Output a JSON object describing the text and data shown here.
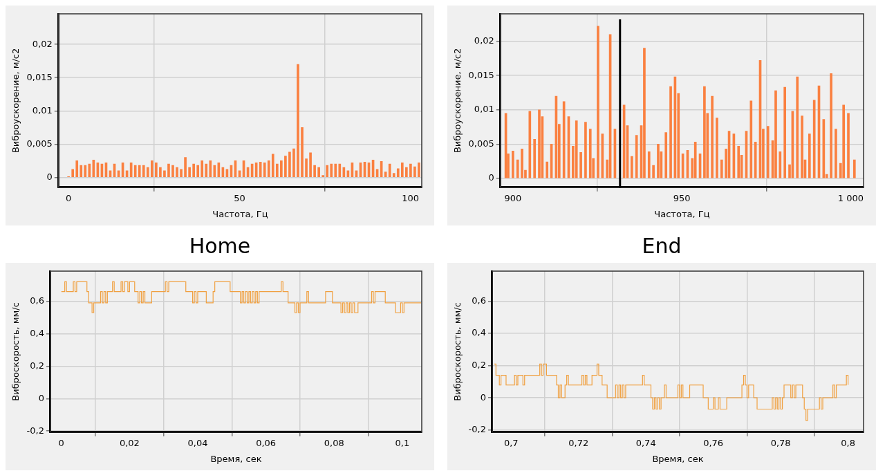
{
  "chart_data": [
    {
      "type": "bar",
      "xlabel": "Частота, Гц",
      "ylabel": "Виброускорение, м/с2",
      "color": "#fa8040",
      "grid": true,
      "xlim": [
        -2.9,
        103.3
      ],
      "ylim": [
        -0.0015,
        0.0246
      ],
      "xticks": [
        0,
        50,
        100
      ],
      "yticks": [
        {
          "value": 0,
          "label": "0"
        },
        {
          "value": 0.005,
          "label": "0,005"
        },
        {
          "value": 0.01,
          "label": "0,01"
        },
        {
          "value": 0.015,
          "label": "0,015"
        },
        {
          "value": 0.02,
          "label": "0,02"
        }
      ],
      "x": [
        0,
        1.22,
        2.44,
        3.66,
        4.88,
        6.1,
        7.32,
        8.54,
        9.76,
        10.98,
        12.2,
        13.42,
        14.64,
        15.86,
        17.08,
        18.3,
        19.52,
        20.74,
        21.96,
        23.18,
        24.4,
        25.62,
        26.84,
        28.06,
        29.28,
        30.5,
        31.72,
        32.94,
        34.16,
        35.38,
        36.6,
        37.82,
        39.04,
        40.26,
        41.48,
        42.7,
        43.92,
        45.14,
        46.36,
        47.58,
        48.8,
        50.02,
        51.24,
        52.46,
        53.68,
        54.9,
        56.12,
        57.34,
        58.56,
        59.78,
        61,
        62.22,
        63.44,
        64.66,
        65.88,
        67.1,
        68.32,
        69.54,
        70.76,
        71.98,
        73.2,
        74.42,
        75.64,
        76.86,
        78.08,
        79.3,
        80.52,
        81.74,
        82.96,
        84.18,
        85.4,
        86.62,
        87.84,
        89.06,
        90.28,
        91.5,
        92.72,
        93.94,
        95.16,
        96.38,
        97.6,
        98.82,
        100.04,
        101.26,
        102.48
      ],
      "values": [
        0.0001,
        0.0012,
        0.0025,
        0.0018,
        0.0018,
        0.002,
        0.0026,
        0.0022,
        0.002,
        0.0022,
        0.001,
        0.002,
        0.001,
        0.0022,
        0.001,
        0.0022,
        0.0018,
        0.0018,
        0.0018,
        0.0015,
        0.0025,
        0.0022,
        0.0015,
        0.001,
        0.002,
        0.0018,
        0.0015,
        0.0012,
        0.003,
        0.0015,
        0.002,
        0.0018,
        0.0025,
        0.002,
        0.0025,
        0.0018,
        0.0022,
        0.0015,
        0.0012,
        0.0018,
        0.0025,
        0.001,
        0.0025,
        0.0015,
        0.002,
        0.0022,
        0.0023,
        0.0022,
        0.0025,
        0.0035,
        0.002,
        0.0025,
        0.0032,
        0.0038,
        0.0043,
        0.017,
        0.0075,
        0.0028,
        0.0037,
        0.0018,
        0.0015,
        0.0003,
        0.0018,
        0.002,
        0.002,
        0.002,
        0.0015,
        0.001,
        0.0022,
        0.001,
        0.0022,
        0.0023,
        0.0022,
        0.0026,
        0.0012,
        0.0024,
        0.0008,
        0.002,
        0.0006,
        0.0013,
        0.0022,
        0.0015,
        0.002,
        0.0016,
        0.0022
      ]
    },
    {
      "type": "bar",
      "xlabel": "Частота, Гц",
      "ylabel": "Виброускорение, м/с2",
      "color": "#fa8040",
      "grid": true,
      "xlim": [
        896.3,
        1003.8
      ],
      "ylim": [
        -0.0013,
        0.024
      ],
      "xticks": [
        900,
        950,
        {
          "value": 1000,
          "label": "1 000"
        }
      ],
      "yticks": [
        {
          "value": 0,
          "label": "0"
        },
        {
          "value": 0.005,
          "label": "0,005"
        },
        {
          "value": 0.01,
          "label": "0,01"
        },
        {
          "value": 0.015,
          "label": "0,015"
        },
        {
          "value": 0.02,
          "label": "0,02"
        }
      ],
      "ref_lines": [
        {
          "axis": "x",
          "value": 931.7,
          "color": "#000000"
        }
      ],
      "x": [
        897.9,
        898.6,
        900,
        901.4,
        902.7,
        903.7,
        905,
        906.4,
        907.8,
        908.7,
        910.1,
        911.4,
        912.8,
        913.7,
        915.1,
        916.5,
        917.8,
        918.8,
        920.1,
        921.5,
        922.9,
        923.8,
        925.2,
        926.5,
        927.9,
        928.8,
        930.2,
        932.9,
        933.9,
        935.2,
        936.6,
        938,
        938.9,
        940.3,
        941.6,
        943,
        943.9,
        945.3,
        946.7,
        948,
        949,
        950.3,
        951.7,
        953.1,
        954,
        955.4,
        956.7,
        957.6,
        959,
        960.4,
        961.8,
        963.1,
        964,
        965.4,
        966.8,
        967.7,
        969.1,
        970.5,
        971.8,
        973.2,
        974.1,
        975.5,
        976.9,
        977.8,
        979.1,
        980.5,
        981.9,
        982.8,
        984.2,
        985.6,
        986.5,
        987.8,
        989.2,
        990.6,
        992,
        992.9,
        994.2,
        995.6,
        997,
        997.9,
        999.3,
        1001.1
      ],
      "values": [
        0.0095,
        0.0036,
        0.004,
        0.0027,
        0.0043,
        0.0012,
        0.0098,
        0.0057,
        0.01,
        0.009,
        0.0024,
        0.005,
        0.012,
        0.0079,
        0.0112,
        0.009,
        0.0047,
        0.0084,
        0.0038,
        0.0082,
        0.0072,
        0.0029,
        0.0222,
        0.0065,
        0.0027,
        0.021,
        0.0072,
        0.0107,
        0.0077,
        0.0032,
        0.0063,
        0.0077,
        0.019,
        0.0039,
        0.0019,
        0.005,
        0.0039,
        0.0067,
        0.0134,
        0.0148,
        0.0124,
        0.0036,
        0.0041,
        0.0029,
        0.0053,
        0.0036,
        0.0134,
        0.0095,
        0.012,
        0.0088,
        0.0027,
        0.0043,
        0.0069,
        0.0065,
        0.0047,
        0.0034,
        0.0069,
        0.0113,
        0.0053,
        0.0172,
        0.0072,
        0.0076,
        0.0055,
        0.0128,
        0.0039,
        0.0133,
        0.002,
        0.0098,
        0.0148,
        0.0091,
        0.0027,
        0.0065,
        0.0114,
        0.0135,
        0.0086,
        0.0006,
        0.0153,
        0.0072,
        0.0022,
        0.0107,
        0.0095,
        0.0027
      ]
    },
    {
      "type": "step",
      "title": "Home",
      "xlabel": "Время, сек",
      "ylabel": "Виброскорость, мм/с",
      "color": "#f0a040",
      "grid": true,
      "xlim": [
        -0.0032,
        0.1057
      ],
      "ylim": [
        -0.207,
        0.786
      ],
      "xticks": [
        0,
        {
          "value": 0.02,
          "label": "0,02"
        },
        {
          "value": 0.04,
          "label": "0,04"
        },
        {
          "value": 0.06,
          "label": "0,06"
        },
        {
          "value": 0.08,
          "label": "0,08"
        },
        {
          "value": 0.1,
          "label": "0,1"
        }
      ],
      "yticks": [
        {
          "value": -0.2,
          "label": "-0,2"
        },
        0,
        {
          "value": 0.2,
          "label": "0,2"
        },
        {
          "value": 0.4,
          "label": "0,4"
        },
        {
          "value": 0.6,
          "label": "0,6"
        }
      ],
      "x": [
        0,
        0.001,
        0.0015,
        0.0035,
        0.004,
        0.0045,
        0.0075,
        0.008,
        0.009,
        0.0095,
        0.0115,
        0.012,
        0.0125,
        0.013,
        0.0135,
        0.015,
        0.0155,
        0.0175,
        0.018,
        0.0185,
        0.0195,
        0.02,
        0.0215,
        0.0225,
        0.023,
        0.0235,
        0.024,
        0.0245,
        0.0265,
        0.0305,
        0.031,
        0.0315,
        0.0365,
        0.0385,
        0.039,
        0.0395,
        0.04,
        0.0425,
        0.0445,
        0.045,
        0.0495,
        0.0525,
        0.053,
        0.0535,
        0.054,
        0.0545,
        0.055,
        0.0555,
        0.056,
        0.0565,
        0.057,
        0.0575,
        0.058,
        0.0645,
        0.065,
        0.0665,
        0.0685,
        0.069,
        0.0695,
        0.07,
        0.072,
        0.0725,
        0.0775,
        0.0795,
        0.082,
        0.0825,
        0.083,
        0.0835,
        0.084,
        0.0845,
        0.085,
        0.0855,
        0.086,
        0.087,
        0.091,
        0.0915,
        0.092,
        0.095,
        0.098,
        0.0995,
        0.1,
        0.1005,
        0.1055
      ],
      "values": [
        0.66,
        0.72,
        0.66,
        0.72,
        0.66,
        0.72,
        0.66,
        0.59,
        0.53,
        0.59,
        0.66,
        0.59,
        0.66,
        0.59,
        0.66,
        0.72,
        0.66,
        0.72,
        0.66,
        0.72,
        0.66,
        0.72,
        0.66,
        0.59,
        0.66,
        0.59,
        0.66,
        0.59,
        0.66,
        0.72,
        0.66,
        0.72,
        0.66,
        0.59,
        0.66,
        0.59,
        0.66,
        0.59,
        0.66,
        0.72,
        0.66,
        0.59,
        0.66,
        0.59,
        0.66,
        0.59,
        0.66,
        0.59,
        0.66,
        0.59,
        0.66,
        0.59,
        0.66,
        0.72,
        0.66,
        0.59,
        0.53,
        0.59,
        0.53,
        0.59,
        0.66,
        0.59,
        0.66,
        0.59,
        0.53,
        0.59,
        0.53,
        0.59,
        0.53,
        0.59,
        0.53,
        0.59,
        0.53,
        0.59,
        0.66,
        0.59,
        0.66,
        0.59,
        0.53,
        0.59,
        0.53,
        0.59,
        0.59
      ]
    },
    {
      "type": "step",
      "title": "End",
      "xlabel": "Время, сек",
      "ylabel": "Виброскорость, мм/с",
      "color": "#f0a040",
      "grid": true,
      "xlim": [
        0.6944,
        0.8046
      ],
      "ylim": [
        -0.213,
        0.787
      ],
      "xticks": [
        {
          "value": 0.7,
          "label": "0,7"
        },
        {
          "value": 0.72,
          "label": "0,72"
        },
        {
          "value": 0.74,
          "label": "0,74"
        },
        {
          "value": 0.76,
          "label": "0,76"
        },
        {
          "value": 0.78,
          "label": "0,78"
        },
        {
          "value": 0.8,
          "label": "0,8"
        }
      ],
      "yticks": [
        {
          "value": -0.2,
          "label": "-0,2"
        },
        0,
        {
          "value": 0.2,
          "label": "0,2"
        },
        {
          "value": 0.4,
          "label": "0,4"
        },
        {
          "value": 0.6,
          "label": "0,6"
        }
      ],
      "x": [
        0.695,
        0.6955,
        0.6965,
        0.697,
        0.6985,
        0.701,
        0.7015,
        0.702,
        0.7035,
        0.704,
        0.7085,
        0.709,
        0.7095,
        0.7105,
        0.7135,
        0.714,
        0.7145,
        0.715,
        0.716,
        0.7165,
        0.717,
        0.721,
        0.7215,
        0.722,
        0.7225,
        0.724,
        0.7255,
        0.726,
        0.727,
        0.7285,
        0.731,
        0.7315,
        0.732,
        0.7325,
        0.733,
        0.7335,
        0.734,
        0.739,
        0.7395,
        0.7415,
        0.742,
        0.7425,
        0.743,
        0.7435,
        0.744,
        0.7445,
        0.7455,
        0.746,
        0.7495,
        0.75,
        0.7505,
        0.751,
        0.753,
        0.757,
        0.7585,
        0.76,
        0.7605,
        0.7615,
        0.762,
        0.764,
        0.7685,
        0.769,
        0.7695,
        0.77,
        0.7705,
        0.772,
        0.773,
        0.7775,
        0.778,
        0.7785,
        0.779,
        0.7795,
        0.78,
        0.7805,
        0.781,
        0.783,
        0.7835,
        0.784,
        0.7845,
        0.7865,
        0.787,
        0.7875,
        0.788,
        0.7915,
        0.792,
        0.7925,
        0.7955,
        0.796,
        0.7965,
        0.7995,
        0.8
      ],
      "values": [
        0.21,
        0.14,
        0.08,
        0.14,
        0.08,
        0.14,
        0.08,
        0.14,
        0.08,
        0.14,
        0.21,
        0.14,
        0.21,
        0.14,
        0.08,
        0,
        0.08,
        0,
        0.08,
        0.14,
        0.08,
        0.14,
        0.08,
        0.14,
        0.08,
        0.14,
        0.21,
        0.14,
        0.08,
        0,
        0.08,
        0,
        0.08,
        0,
        0.08,
        0,
        0.08,
        0.14,
        0.08,
        0,
        -0.07,
        0,
        -0.07,
        0,
        -0.07,
        0,
        0.08,
        0,
        0.08,
        0,
        0.08,
        0,
        0.08,
        0,
        -0.07,
        0,
        -0.07,
        0,
        -0.07,
        0,
        0.08,
        0.14,
        0.08,
        0,
        0.08,
        0,
        -0.07,
        0,
        -0.07,
        0,
        -0.07,
        0,
        -0.07,
        0,
        0.08,
        0,
        0.08,
        0,
        0.08,
        0,
        -0.07,
        -0.14,
        -0.07,
        0,
        -0.07,
        0,
        0.08,
        0,
        0.08,
        0.14,
        0.08
      ]
    }
  ]
}
